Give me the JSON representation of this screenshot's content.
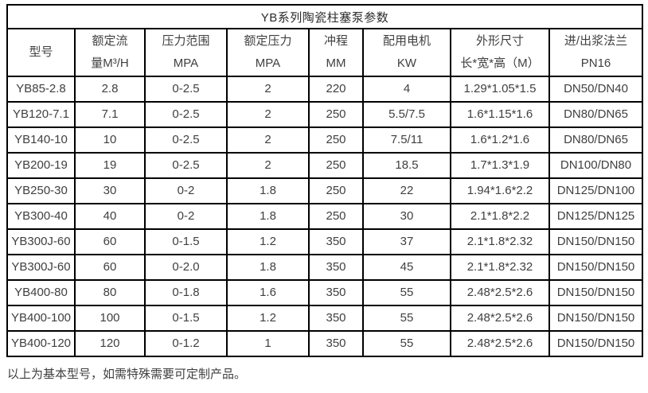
{
  "title": "YB系列陶瓷柱塞泵参数",
  "table": {
    "columns": [
      {
        "lines": [
          "型号"
        ]
      },
      {
        "lines": [
          "额定流",
          "量M³/H"
        ]
      },
      {
        "lines": [
          "压力范围",
          "MPA"
        ]
      },
      {
        "lines": [
          "额定压力",
          "MPA"
        ]
      },
      {
        "lines": [
          "冲程",
          "MM"
        ]
      },
      {
        "lines": [
          "配用电机",
          "KW"
        ]
      },
      {
        "lines": [
          "外形尺寸",
          "长*宽*高（M）"
        ]
      },
      {
        "lines": [
          "进/出浆法兰",
          "PN16"
        ]
      }
    ],
    "rows": [
      [
        "YB85-2.8",
        "2.8",
        "0-2.5",
        "2",
        "220",
        "4",
        "1.29*1.05*1.5",
        "DN50/DN40"
      ],
      [
        "YB120-7.1",
        "7.1",
        "0-2.5",
        "2",
        "250",
        "5.5/7.5",
        "1.6*1.15*1.6",
        "DN80/DN65"
      ],
      [
        "YB140-10",
        "10",
        "0-2.5",
        "2",
        "250",
        "7.5/11",
        "1.6*1.2*1.6",
        "DN80/DN65"
      ],
      [
        "YB200-19",
        "19",
        "0-2.5",
        "2",
        "250",
        "18.5",
        "1.7*1.3*1.9",
        "DN100/DN80"
      ],
      [
        "YB250-30",
        "30",
        "0-2",
        "1.8",
        "250",
        "22",
        "1.94*1.6*2.2",
        "DN125/DN100"
      ],
      [
        "YB300-40",
        "40",
        "0-2",
        "1.8",
        "250",
        "30",
        "2.1*1.8*2.2",
        "DN125/DN125"
      ],
      [
        "YB300J-60",
        "60",
        "0-1.5",
        "1.2",
        "350",
        "37",
        "2.1*1.8*2.32",
        "DN150/DN150"
      ],
      [
        "YB300J-60",
        "60",
        "0-2.0",
        "1.8",
        "350",
        "45",
        "2.1*1.8*2.32",
        "DN150/DN150"
      ],
      [
        "YB400-80",
        "80",
        "0-1.8",
        "1.6",
        "350",
        "55",
        "2.48*2.5*2.6",
        "DN150/DN150"
      ],
      [
        "YB400-100",
        "100",
        "0-1.5",
        "1.2",
        "350",
        "55",
        "2.48*2.5*2.6",
        "DN150/DN150"
      ],
      [
        "YB400-120",
        "120",
        "0-1.2",
        "1",
        "350",
        "55",
        "2.48*2.5*2.6",
        "DN150/DN150"
      ]
    ]
  },
  "footer": {
    "note": "以上为基本型号，如需特殊需要可定制产品。"
  },
  "colors": {
    "border": "#000000",
    "text": "#404040",
    "background": "#ffffff"
  }
}
